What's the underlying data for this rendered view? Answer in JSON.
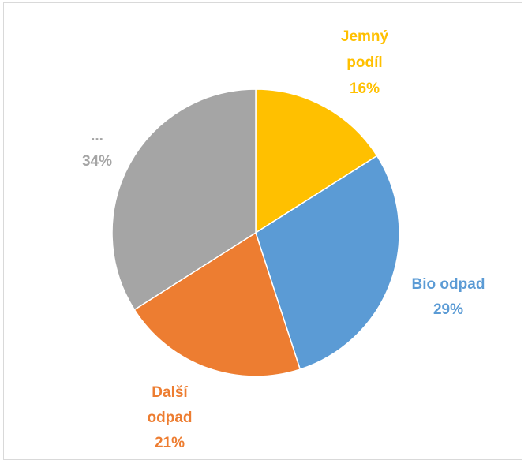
{
  "chart_data": {
    "type": "pie",
    "title": "",
    "slices": [
      {
        "label_lines": [
          "Jemný",
          "podíl"
        ],
        "value": 16,
        "percent_label": "16%",
        "color": "#FFC000"
      },
      {
        "label_lines": [
          "Bio odpad"
        ],
        "value": 29,
        "percent_label": "29%",
        "color": "#5B9BD5"
      },
      {
        "label_lines": [
          "Další",
          "odpad"
        ],
        "value": 21,
        "percent_label": "21%",
        "color": "#ED7D31"
      },
      {
        "label_lines": [
          "..."
        ],
        "value": 34,
        "percent_label": "34%",
        "color": "#A5A5A5"
      }
    ],
    "start_angle_deg": 0,
    "direction": "clockwise",
    "legend": "none"
  }
}
